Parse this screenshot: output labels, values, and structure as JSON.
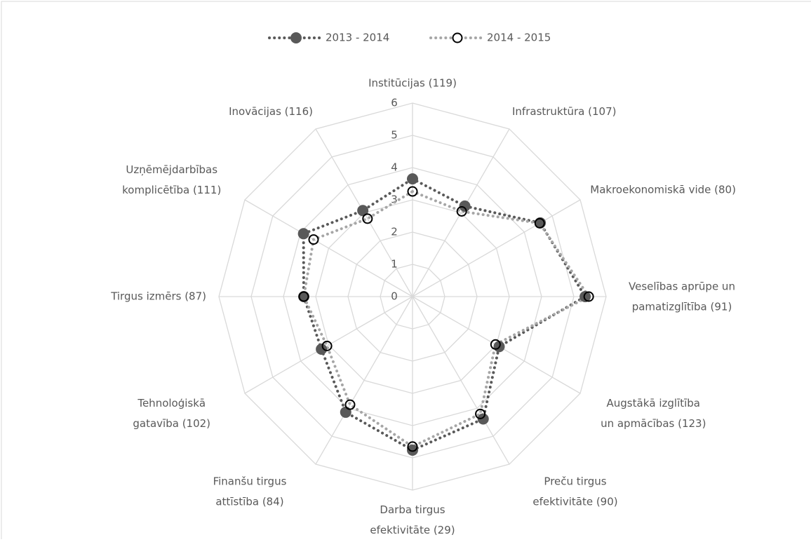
{
  "chart_data": {
    "type": "radar",
    "categories": [
      "Institūcijas (119)",
      "Infrastruktūra (107)",
      "Makroekonomiskā vide (80)",
      "Veselības aprūpe un pamatizglītība (91)",
      "Augstākā izglītība un apmācības (123)",
      "Preču tirgus efektivitāte (90)",
      "Darba tirgus efektivitāte (29)",
      "Finanšu tirgus attīstība (84)",
      "Tehnoloģiskā gatavība (102)",
      "Tirgus izmērs (87)",
      "Uzņēmējdarbības komplicētība (111)",
      "Inovācijas (116)"
    ],
    "series": [
      {
        "name": "2013 - 2014",
        "color": "#595959",
        "values": [
          3.65,
          3.24,
          4.57,
          5.35,
          3.1,
          4.38,
          4.76,
          4.14,
          3.26,
          3.37,
          3.9,
          3.08
        ]
      },
      {
        "name": "2014 - 2015",
        "color": "#a6a6a6",
        "values": [
          3.26,
          3.05,
          4.55,
          5.46,
          2.97,
          4.2,
          4.65,
          3.87,
          3.06,
          3.37,
          3.54,
          2.79
        ]
      }
    ],
    "ylim": [
      0,
      6
    ],
    "yticks": [
      0,
      1,
      2,
      3,
      4,
      5,
      6
    ],
    "grid": true,
    "legend": "top"
  }
}
